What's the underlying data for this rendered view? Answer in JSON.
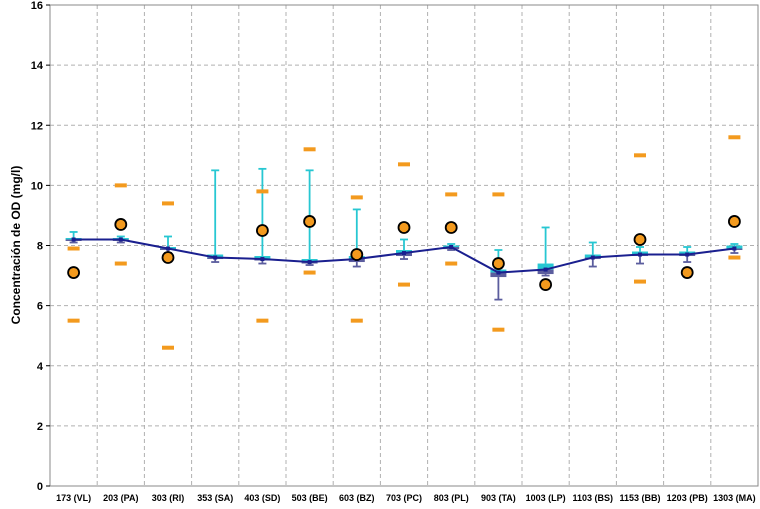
{
  "chart_data": {
    "type": "box",
    "ylabel": "Concentración de OD (mg/l)",
    "ylim": [
      0,
      16
    ],
    "yticks": [
      0,
      2,
      4,
      6,
      8,
      10,
      12,
      14,
      16
    ],
    "grid": true,
    "categories": [
      "173 (VL)",
      "203 (PA)",
      "303 (RI)",
      "353 (SA)",
      "403 (SD)",
      "503 (BE)",
      "603 (BZ)",
      "703 (PC)",
      "803 (PL)",
      "903 (TA)",
      "1003 (LP)",
      "1103 (BS)",
      "1153 (BB)",
      "1203 (PB)",
      "1303 (MA)"
    ],
    "colors": {
      "line": "#1a1f8f",
      "box": "#27c7d2",
      "box_low": "#5b5d9e",
      "circle": "#f39a1e",
      "dash": "#f39a1e",
      "grid": "#b0b0b0"
    },
    "median_line": [
      8.2,
      8.2,
      7.9,
      7.6,
      7.55,
      7.45,
      7.55,
      7.75,
      7.95,
      7.1,
      7.2,
      7.6,
      7.7,
      7.7,
      7.9
    ],
    "boxes": [
      {
        "q1": 8.15,
        "q3": 8.25,
        "whisker_low": 8.1,
        "whisker_high": 8.45
      },
      {
        "q1": 8.15,
        "q3": 8.25,
        "whisker_low": 8.1,
        "whisker_high": 8.3
      },
      {
        "q1": 7.85,
        "q3": 7.95,
        "whisker_low": 7.75,
        "whisker_high": 8.3
      },
      {
        "q1": 7.55,
        "q3": 7.7,
        "whisker_low": 7.45,
        "whisker_high": 10.5
      },
      {
        "q1": 7.5,
        "q3": 7.65,
        "whisker_low": 7.4,
        "whisker_high": 10.55
      },
      {
        "q1": 7.4,
        "q3": 7.55,
        "whisker_low": 7.35,
        "whisker_high": 10.5
      },
      {
        "q1": 7.45,
        "q3": 7.65,
        "whisker_low": 7.3,
        "whisker_high": 9.2
      },
      {
        "q1": 7.65,
        "q3": 7.85,
        "whisker_low": 7.55,
        "whisker_high": 8.2
      },
      {
        "q1": 7.88,
        "q3": 8.0,
        "whisker_low": 7.85,
        "whisker_high": 8.05
      },
      {
        "q1": 6.95,
        "q3": 7.2,
        "whisker_low": 6.2,
        "whisker_high": 7.85
      },
      {
        "q1": 7.05,
        "q3": 7.4,
        "whisker_low": 7.0,
        "whisker_high": 8.6
      },
      {
        "q1": 7.55,
        "q3": 7.7,
        "whisker_low": 7.3,
        "whisker_high": 8.1
      },
      {
        "q1": 7.65,
        "q3": 7.8,
        "whisker_low": 7.4,
        "whisker_high": 7.95
      },
      {
        "q1": 7.65,
        "q3": 7.8,
        "whisker_low": 7.45,
        "whisker_high": 7.95
      },
      {
        "q1": 7.85,
        "q3": 8.0,
        "whisker_low": 7.75,
        "whisker_high": 8.05
      }
    ],
    "circles": [
      7.1,
      8.7,
      7.6,
      null,
      8.5,
      8.8,
      7.7,
      8.6,
      8.6,
      7.4,
      6.7,
      null,
      8.2,
      7.1,
      8.8
    ],
    "dash_high": [
      7.9,
      10.0,
      9.4,
      null,
      9.8,
      11.2,
      9.6,
      10.7,
      9.7,
      9.7,
      null,
      null,
      11.0,
      null,
      11.6
    ],
    "dash_low": [
      5.5,
      7.4,
      4.6,
      null,
      5.5,
      7.1,
      5.5,
      6.7,
      7.4,
      5.2,
      null,
      null,
      6.8,
      null,
      7.6
    ]
  }
}
